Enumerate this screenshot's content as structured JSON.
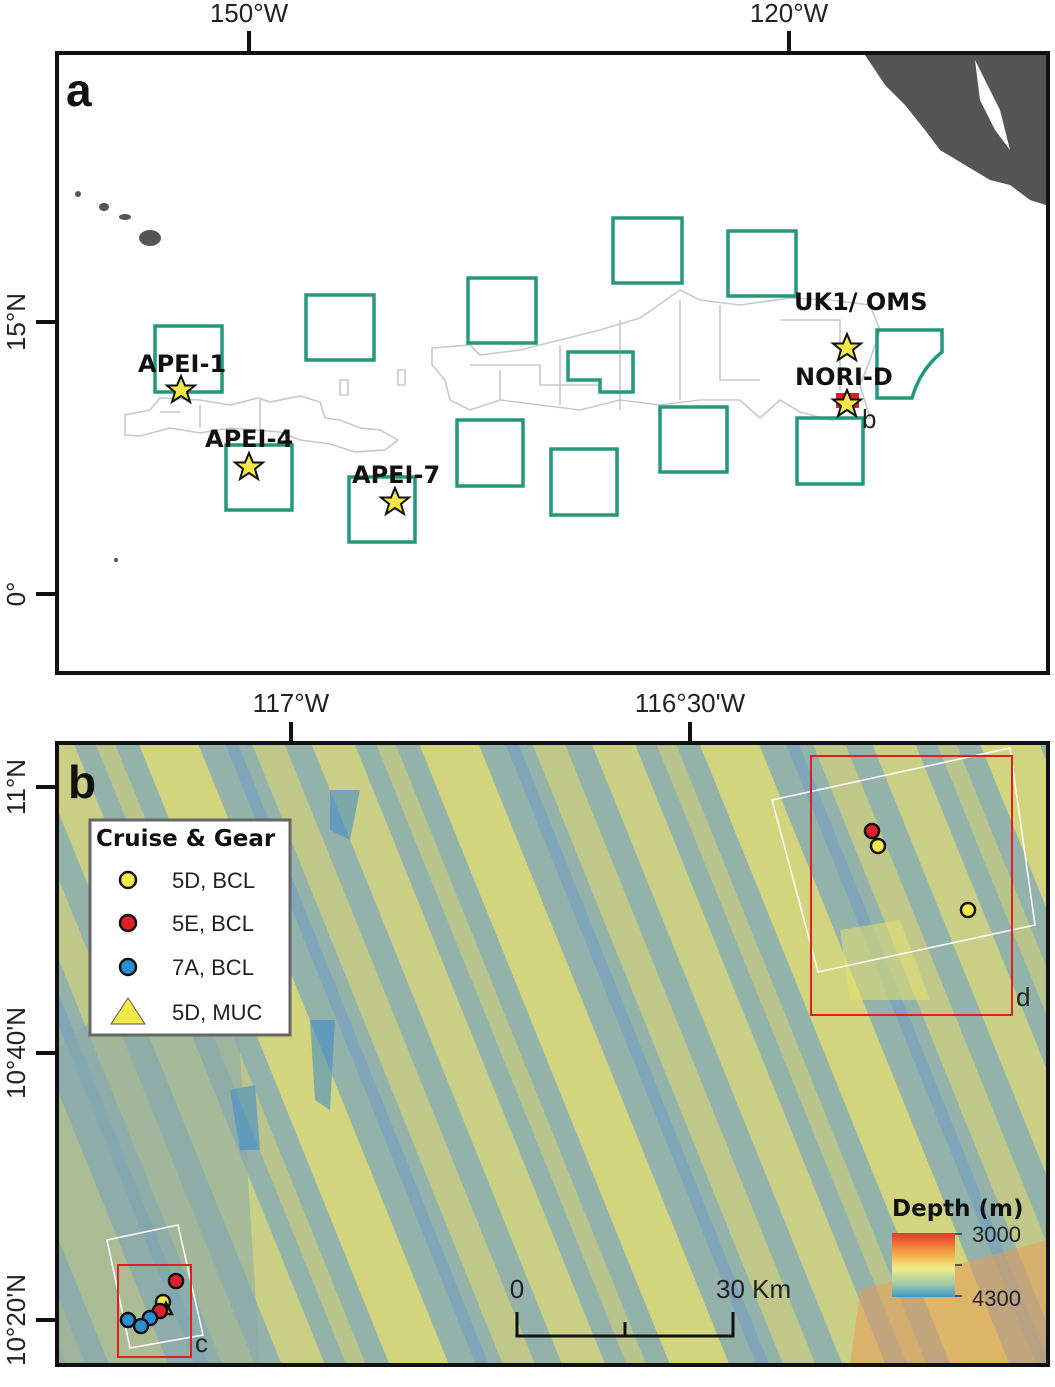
{
  "panel_a": {
    "letter": "a",
    "x_ticks": [
      "150°W",
      "120°W"
    ],
    "y_ticks": [
      "15°N",
      "0°"
    ],
    "sites": [
      {
        "name": "APEI-1"
      },
      {
        "name": "APEI-4"
      },
      {
        "name": "APEI-7"
      },
      {
        "name": "UK1/ OMS"
      },
      {
        "name": "NORI-D"
      }
    ],
    "inset_label": "b",
    "colors": {
      "apei_box": "#23997a",
      "claims": "#c8c8c8",
      "land": "#555555",
      "star": "#f3e84a",
      "inset_box": "#e02020"
    }
  },
  "panel_b": {
    "letter": "b",
    "x_ticks": [
      "117°W",
      "116°30'W"
    ],
    "y_ticks": [
      "11°N",
      "10°40'N",
      "10°20'N"
    ],
    "legend": {
      "title": "Cruise & Gear",
      "items": [
        {
          "label": "5D, BCL",
          "color": "#f3e84a",
          "shape": "circle"
        },
        {
          "label": "5E, BCL",
          "color": "#e0202a",
          "shape": "circle"
        },
        {
          "label": "7A, BCL",
          "color": "#2a8fd0",
          "shape": "circle"
        },
        {
          "label": "5D, MUC",
          "color": "#f3e84a",
          "shape": "triangle"
        }
      ]
    },
    "insets": [
      "c",
      "d"
    ],
    "scale_bar": {
      "start": "0",
      "end": "30 Km"
    },
    "depth_legend": {
      "title": "Depth (m)",
      "min": "3000",
      "max": "4300"
    }
  }
}
